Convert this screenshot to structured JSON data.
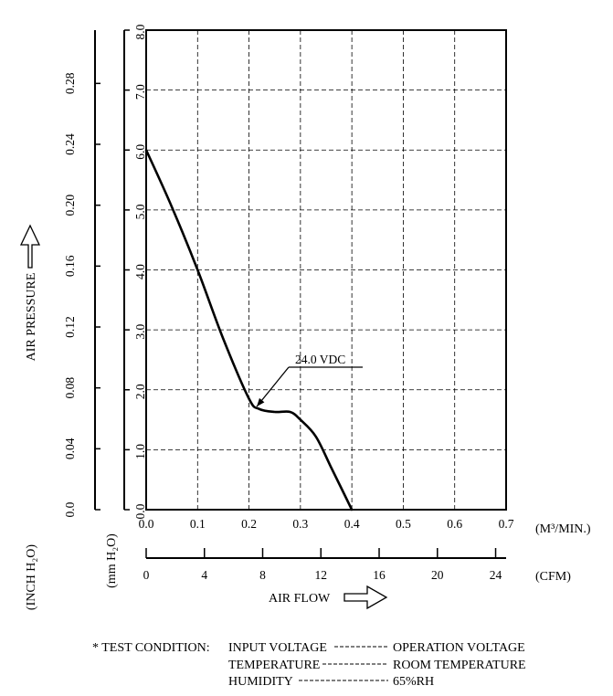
{
  "chart_data": {
    "type": "line",
    "x_primary": {
      "label": "AIR FLOW",
      "unit": "(M³/MIN.)",
      "range": [
        0,
        0.7
      ],
      "ticks": [
        "0.0",
        "0.1",
        "0.2",
        "0.3",
        "0.4",
        "0.5",
        "0.6",
        "0.7"
      ]
    },
    "x_secondary": {
      "unit": "(CFM)",
      "range": [
        0,
        24.72
      ],
      "ticks": [
        "0",
        "4",
        "8",
        "12",
        "16",
        "20",
        "24"
      ]
    },
    "y_primary": {
      "unit": "(mm H₂O)",
      "range": [
        0,
        8
      ],
      "ticks": [
        "0.0",
        "1.0",
        "2.0",
        "3.0",
        "4.0",
        "5.0",
        "6.0",
        "7.0",
        "8.0"
      ]
    },
    "y_secondary": {
      "label": "AIR PRESSURE",
      "unit": "(INCH H₂O)",
      "range": [
        0,
        0.315
      ],
      "ticks": [
        "0.0",
        "0.04",
        "0.08",
        "0.12",
        "0.16",
        "0.20",
        "0.24",
        "0.28"
      ]
    },
    "grid": true,
    "series": [
      {
        "name": "24.0 VDC",
        "x": [
          0.0,
          0.05,
          0.1,
          0.15,
          0.2,
          0.22,
          0.25,
          0.28,
          0.3,
          0.33,
          0.36,
          0.4
        ],
        "y": [
          6.0,
          5.05,
          4.0,
          2.85,
          1.85,
          1.68,
          1.63,
          1.63,
          1.5,
          1.22,
          0.7,
          0.0
        ]
      }
    ]
  },
  "test_condition": {
    "prefix": "* TEST CONDITION:",
    "rows": [
      {
        "name": "INPUT VOLTAGE",
        "value": "OPERATION VOLTAGE"
      },
      {
        "name": "TEMPERATURE",
        "value": "ROOM TEMPERATURE"
      },
      {
        "name": "HUMIDITY",
        "value": "65%RH"
      }
    ]
  },
  "colors": {
    "ink": "#000000",
    "grid": "#000000",
    "background": "#ffffff"
  },
  "icons": {
    "y_arrow": "arrow-up-outline-icon",
    "x_arrow": "arrow-right-outline-icon"
  }
}
